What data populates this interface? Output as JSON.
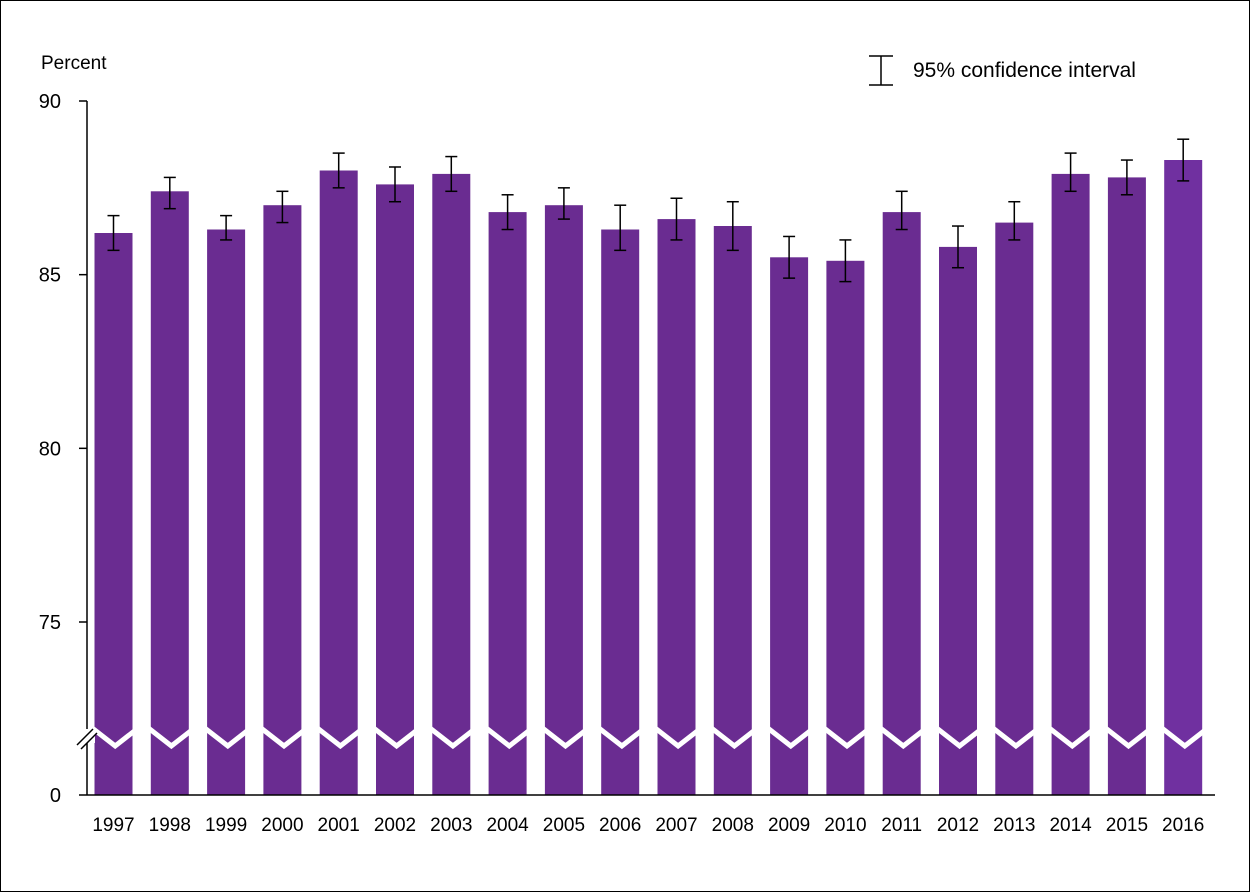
{
  "chart_data": {
    "type": "bar",
    "title": "",
    "ylabel": "Percent",
    "xlabel": "",
    "categories": [
      "1997",
      "1998",
      "1999",
      "2000",
      "2001",
      "2002",
      "2003",
      "2004",
      "2005",
      "2006",
      "2007",
      "2008",
      "2009",
      "2010",
      "2011",
      "2012",
      "2013",
      "2014",
      "2015",
      "2016"
    ],
    "values": [
      86.2,
      87.4,
      86.3,
      87.0,
      88.0,
      87.6,
      87.9,
      86.8,
      87.0,
      86.3,
      86.6,
      86.4,
      85.5,
      85.4,
      86.8,
      85.8,
      86.5,
      87.9,
      87.8,
      88.3
    ],
    "ci_lower": [
      85.7,
      86.9,
      86.0,
      86.5,
      87.5,
      87.1,
      87.4,
      86.3,
      86.6,
      85.7,
      86.0,
      85.7,
      84.9,
      84.8,
      86.3,
      85.2,
      86.0,
      87.4,
      87.3,
      87.7
    ],
    "ci_upper": [
      86.7,
      87.8,
      86.7,
      87.4,
      88.5,
      88.1,
      88.4,
      87.3,
      87.5,
      87.0,
      87.2,
      87.1,
      86.1,
      86.0,
      87.4,
      86.4,
      87.1,
      88.5,
      88.3,
      88.9
    ],
    "y_ticks": [
      "90",
      "85",
      "80",
      "75",
      "0"
    ],
    "ylim": [
      0,
      90
    ],
    "axis_break": true,
    "grid": false,
    "legend": {
      "label": "95% confidence interval",
      "position": "top-right"
    },
    "colors": {
      "bar": "#6a2c91",
      "bar_last": "#7030a0",
      "error_bar": "#000000",
      "break_line": "#ffffff"
    }
  }
}
